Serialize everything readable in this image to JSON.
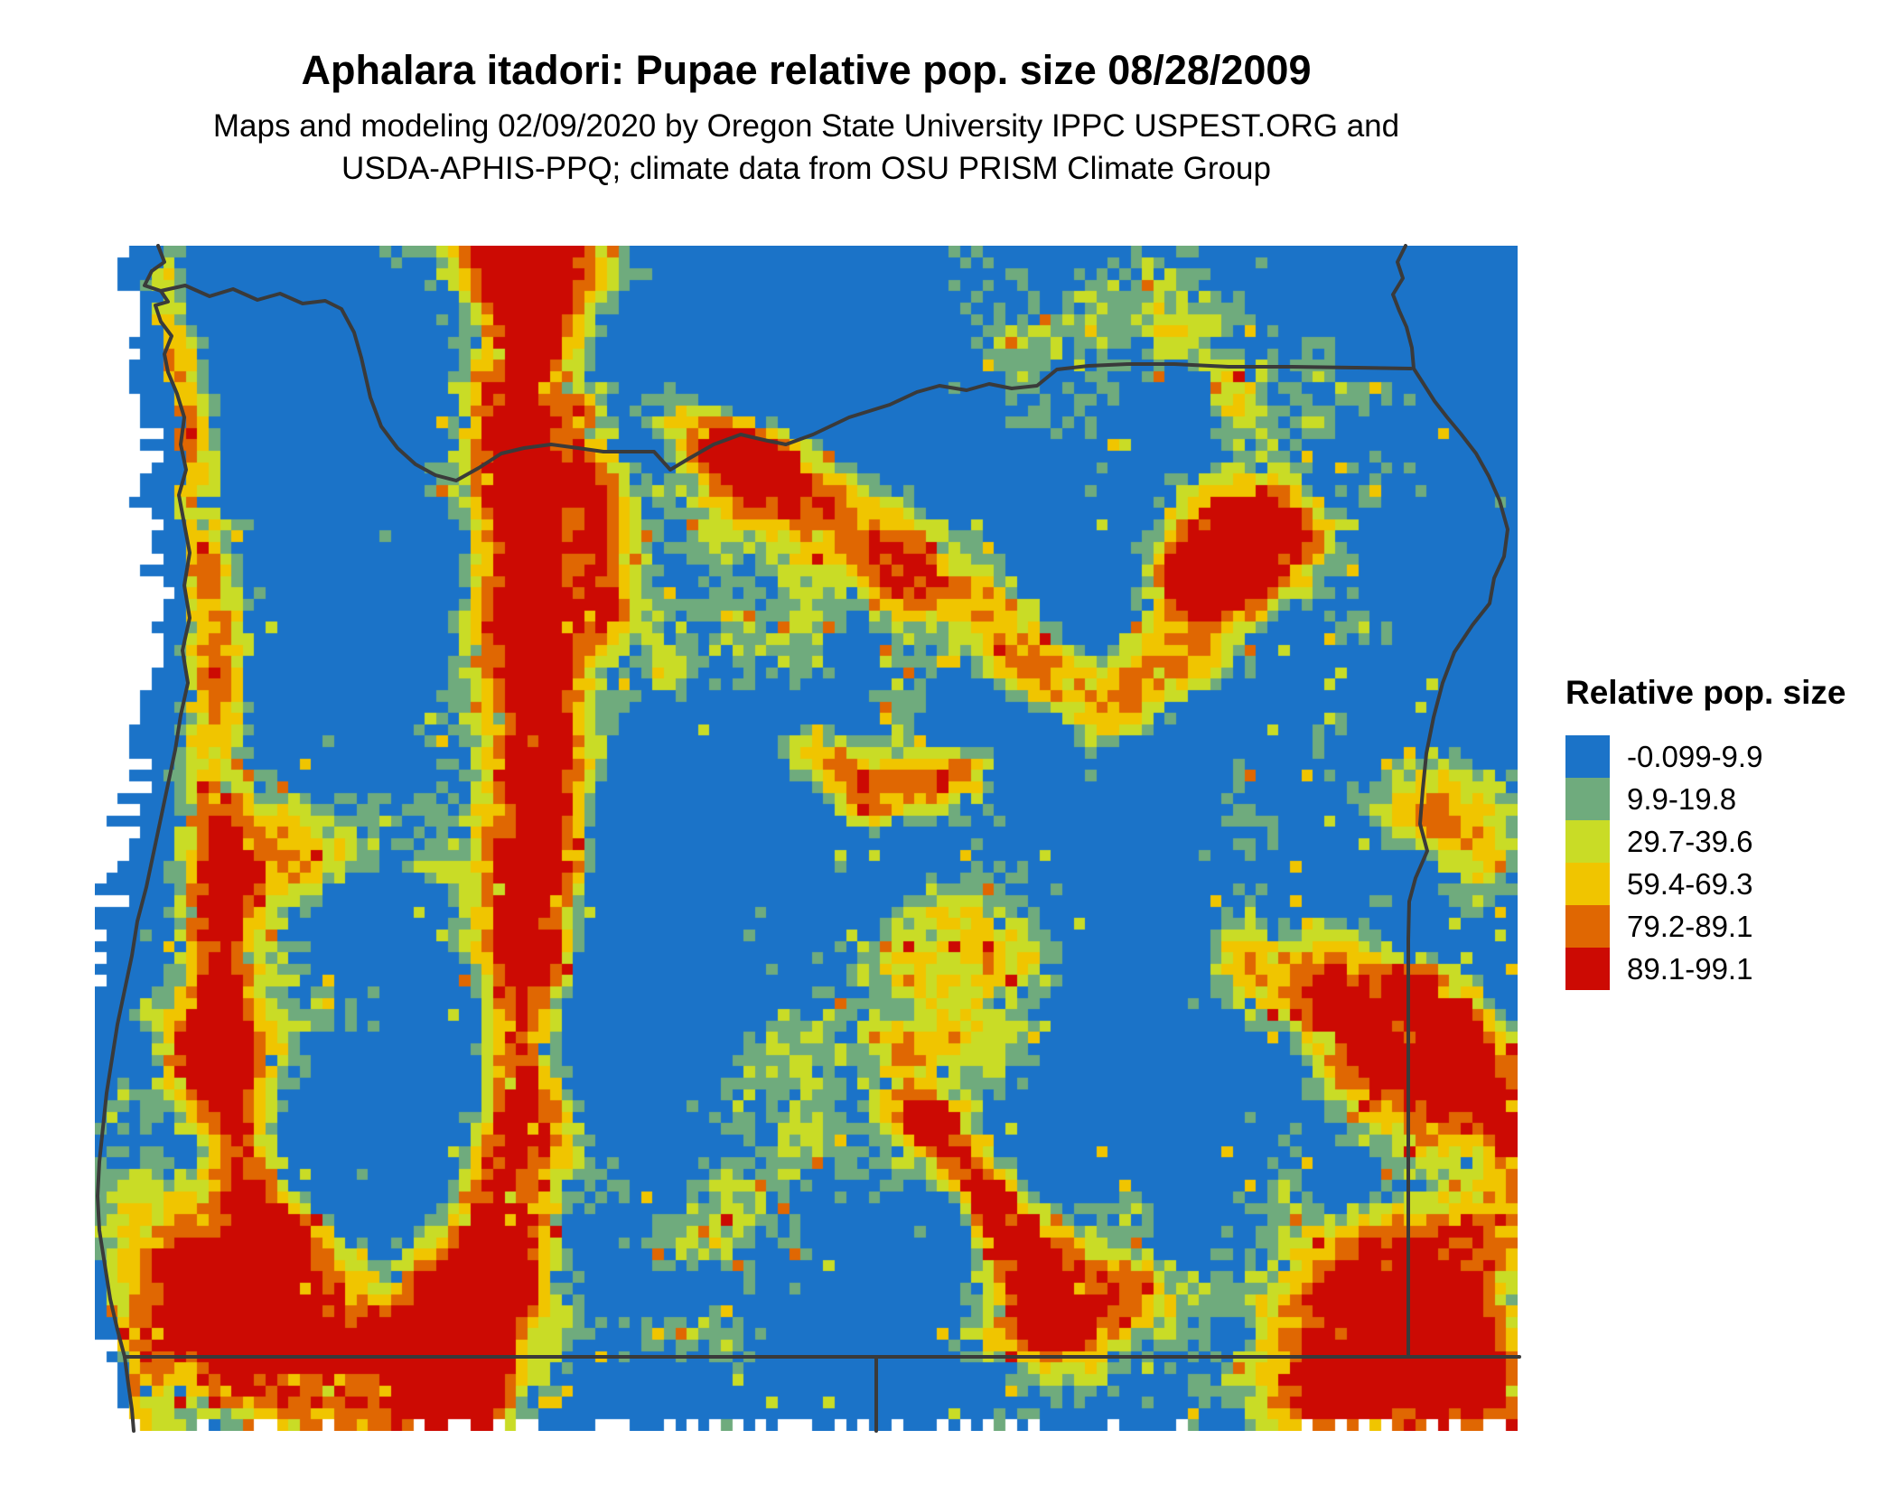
{
  "header": {
    "title": "Aphalara itadori: Pupae relative pop. size 08/28/2009",
    "subtitle_line1": "Maps and modeling 02/09/2020 by Oregon State University IPPC USPEST.ORG and",
    "subtitle_line2": "USDA-APHIS-PPQ; climate data from OSU PRISM Climate Group"
  },
  "legend": {
    "title": "Relative pop. size",
    "classes": [
      {
        "label": "-0.099-9.9",
        "color": "#1B73C8"
      },
      {
        "label": "9.9-19.8",
        "color": "#6FAB7D"
      },
      {
        "label": "29.7-39.6",
        "color": "#C9DC26"
      },
      {
        "label": "59.4-69.3",
        "color": "#F0C500"
      },
      {
        "label": "79.2-89.1",
        "color": "#E06702"
      },
      {
        "label": "89.1-99.1",
        "color": "#CC0A03"
      }
    ]
  },
  "map": {
    "background": "#FFFFFF",
    "boundary_color": "#3A3A3A",
    "boundaries": {
      "coastline": [
        [
          175,
          272
        ],
        [
          182,
          290
        ],
        [
          168,
          300
        ],
        [
          160,
          316
        ],
        [
          178,
          322
        ],
        [
          186,
          334
        ],
        [
          172,
          338
        ],
        [
          178,
          356
        ],
        [
          190,
          372
        ],
        [
          182,
          392
        ],
        [
          186,
          412
        ],
        [
          196,
          436
        ],
        [
          204,
          462
        ],
        [
          200,
          492
        ],
        [
          206,
          520
        ],
        [
          198,
          548
        ],
        [
          204,
          580
        ],
        [
          210,
          612
        ],
        [
          204,
          648
        ],
        [
          210,
          684
        ],
        [
          202,
          720
        ],
        [
          208,
          756
        ],
        [
          200,
          792
        ],
        [
          194,
          830
        ],
        [
          186,
          868
        ],
        [
          178,
          906
        ],
        [
          170,
          944
        ],
        [
          162,
          982
        ],
        [
          152,
          1020
        ],
        [
          146,
          1058
        ],
        [
          138,
          1096
        ],
        [
          130,
          1134
        ],
        [
          124,
          1172
        ],
        [
          118,
          1210
        ],
        [
          114,
          1248
        ],
        [
          110,
          1286
        ],
        [
          108,
          1324
        ],
        [
          110,
          1362
        ],
        [
          116,
          1400
        ],
        [
          122,
          1438
        ],
        [
          130,
          1472
        ],
        [
          138,
          1502
        ],
        [
          142,
          1532
        ],
        [
          146,
          1560
        ],
        [
          148,
          1584
        ]
      ],
      "columbia_washington_border": [
        [
          178,
          322
        ],
        [
          205,
          316
        ],
        [
          232,
          328
        ],
        [
          258,
          320
        ],
        [
          285,
          332
        ],
        [
          310,
          325
        ],
        [
          335,
          336
        ],
        [
          360,
          333
        ],
        [
          378,
          342
        ],
        [
          392,
          368
        ],
        [
          400,
          396
        ],
        [
          410,
          440
        ],
        [
          422,
          472
        ],
        [
          440,
          496
        ],
        [
          460,
          514
        ],
        [
          482,
          526
        ],
        [
          505,
          532
        ],
        [
          530,
          518
        ],
        [
          555,
          502
        ],
        [
          580,
          496
        ],
        [
          610,
          492
        ],
        [
          640,
          496
        ],
        [
          668,
          500
        ],
        [
          700,
          500
        ],
        [
          724,
          500
        ],
        [
          742,
          520
        ],
        [
          762,
          508
        ],
        [
          790,
          492
        ],
        [
          820,
          481
        ],
        [
          850,
          488
        ],
        [
          870,
          492
        ],
        [
          900,
          481
        ],
        [
          940,
          462
        ],
        [
          985,
          448
        ],
        [
          1015,
          434
        ],
        [
          1040,
          427
        ],
        [
          1070,
          432
        ],
        [
          1095,
          425
        ],
        [
          1120,
          430
        ],
        [
          1148,
          427
        ],
        [
          1170,
          409
        ],
        [
          1205,
          405
        ],
        [
          1250,
          403
        ],
        [
          1300,
          403
        ],
        [
          1360,
          406
        ],
        [
          1430,
          406
        ],
        [
          1500,
          407
        ],
        [
          1562,
          408
        ]
      ],
      "snake_idaho_border": [
        [
          1556,
          272
        ],
        [
          1547,
          290
        ],
        [
          1553,
          308
        ],
        [
          1542,
          326
        ],
        [
          1549,
          344
        ],
        [
          1557,
          362
        ],
        [
          1563,
          385
        ],
        [
          1565,
          408
        ],
        [
          1574,
          422
        ],
        [
          1588,
          444
        ],
        [
          1602,
          462
        ],
        [
          1617,
          480
        ],
        [
          1634,
          502
        ],
        [
          1648,
          527
        ],
        [
          1660,
          554
        ],
        [
          1669,
          586
        ],
        [
          1665,
          616
        ],
        [
          1654,
          640
        ],
        [
          1649,
          668
        ],
        [
          1630,
          692
        ],
        [
          1610,
          722
        ],
        [
          1597,
          756
        ],
        [
          1587,
          794
        ],
        [
          1579,
          834
        ],
        [
          1575,
          874
        ],
        [
          1572,
          912
        ],
        [
          1580,
          942
        ],
        [
          1567,
          972
        ],
        [
          1560,
          998
        ],
        [
          1559,
          1040
        ],
        [
          1559,
          1502
        ]
      ],
      "oregon_california_border_42n": [
        [
          138,
          1502
        ],
        [
          1682,
          1502
        ]
      ],
      "california_nevada_border_120w": [
        [
          970,
          1502
        ],
        [
          970,
          1584
        ]
      ]
    },
    "terrain": {
      "ridges": [
        {
          "pts": [
            [
              0.045,
              0.02
            ],
            [
              0.06,
              0.12
            ],
            [
              0.075,
              0.25
            ],
            [
              0.085,
              0.38
            ],
            [
              0.09,
              0.5
            ],
            [
              0.088,
              0.6
            ],
            [
              0.082,
              0.68
            ]
          ],
          "w": 0.026,
          "s": 0.4
        },
        {
          "pts": [
            [
              0.298,
              0.0
            ],
            [
              0.303,
              0.08
            ],
            [
              0.295,
              0.16
            ],
            [
              0.3,
              0.24
            ],
            [
              0.308,
              0.32
            ],
            [
              0.312,
              0.4
            ],
            [
              0.31,
              0.5
            ],
            [
              0.305,
              0.6
            ],
            [
              0.3,
              0.7
            ],
            [
              0.29,
              0.8
            ],
            [
              0.27,
              0.9
            ],
            [
              0.255,
              0.98
            ]
          ],
          "w": 0.038,
          "s": 0.62
        },
        {
          "pts": [
            [
              0.345,
              0.14
            ],
            [
              0.355,
              0.22
            ],
            [
              0.36,
              0.3
            ]
          ],
          "w": 0.022,
          "s": 0.3
        },
        {
          "pts": [
            [
              0.42,
              0.14
            ],
            [
              0.48,
              0.19
            ],
            [
              0.545,
              0.245
            ],
            [
              0.61,
              0.3
            ],
            [
              0.665,
              0.355
            ],
            [
              0.705,
              0.385
            ],
            [
              0.75,
              0.35
            ],
            [
              0.79,
              0.295
            ],
            [
              0.82,
              0.24
            ]
          ],
          "w": 0.04,
          "s": 0.5
        },
        {
          "pts": [
            [
              0.5,
              0.43
            ],
            [
              0.555,
              0.465
            ],
            [
              0.61,
              0.445
            ]
          ],
          "w": 0.026,
          "s": 0.4
        },
        {
          "pts": [
            [
              0.585,
              0.74
            ],
            [
              0.62,
              0.79
            ],
            [
              0.655,
              0.85
            ],
            [
              0.67,
              0.91
            ]
          ],
          "w": 0.022,
          "s": 0.52
        },
        {
          "pts": [
            [
              0.082,
              0.68
            ],
            [
              0.1,
              0.76
            ],
            [
              0.125,
              0.84
            ]
          ],
          "w": 0.032,
          "s": 0.42
        },
        {
          "pts": [
            [
              0.93,
              0.62
            ],
            [
              0.965,
              0.68
            ],
            [
              0.99,
              0.74
            ]
          ],
          "w": 0.022,
          "s": 0.35
        },
        {
          "pts": [
            [
              0.155,
              0.05
            ],
            [
              0.16,
              0.16
            ],
            [
              0.165,
              0.27
            ],
            [
              0.17,
              0.38
            ]
          ],
          "w": 0.033,
          "s": -0.38
        }
      ],
      "blobs": [
        {
          "c": [
            0.09,
            0.9
          ],
          "r": 0.1,
          "s": 0.5
        },
        {
          "c": [
            0.2,
            0.95
          ],
          "r": 0.085,
          "s": 0.45
        },
        {
          "c": [
            0.8,
            0.26
          ],
          "r": 0.05,
          "s": 0.62
        },
        {
          "c": [
            0.95,
            0.48
          ],
          "r": 0.055,
          "s": 0.42
        },
        {
          "c": [
            0.92,
            0.7
          ],
          "r": 0.075,
          "s": 0.55
        },
        {
          "c": [
            0.87,
            0.62
          ],
          "r": 0.05,
          "s": 0.32
        },
        {
          "c": [
            0.95,
            0.9
          ],
          "r": 0.1,
          "s": 0.58
        },
        {
          "c": [
            0.865,
            0.975
          ],
          "r": 0.07,
          "s": 0.45
        },
        {
          "c": [
            0.585,
            0.66
          ],
          "r": 0.1,
          "s": 0.38
        },
        {
          "c": [
            0.455,
            0.175
          ],
          "r": 0.035,
          "s": 0.5
        },
        {
          "c": [
            0.75,
            0.055
          ],
          "r": 0.05,
          "s": 0.32
        },
        {
          "c": [
            0.81,
            0.625
          ],
          "r": 0.05,
          "s": 0.4
        },
        {
          "c": [
            0.7,
            0.895
          ],
          "r": 0.055,
          "s": 0.42
        },
        {
          "c": [
            0.36,
            0.02
          ],
          "r": 0.05,
          "s": 0.45
        },
        {
          "c": [
            0.143,
            0.517
          ],
          "r": 0.065,
          "s": 0.36
        },
        {
          "c": [
            0.45,
            0.09
          ],
          "r": 0.085,
          "s": -0.42
        },
        {
          "c": [
            0.545,
            0.12
          ],
          "r": 0.065,
          "s": -0.33
        },
        {
          "c": [
            0.78,
            0.68
          ],
          "r": 0.095,
          "s": -0.38
        },
        {
          "c": [
            0.72,
            0.5
          ],
          "r": 0.06,
          "s": -0.28
        },
        {
          "c": [
            0.43,
            0.52
          ],
          "r": 0.08,
          "s": -0.3
        },
        {
          "c": [
            0.375,
            0.63
          ],
          "r": 0.075,
          "s": -0.28
        },
        {
          "c": [
            0.95,
            0.05
          ],
          "r": 0.08,
          "s": -0.35
        },
        {
          "c": [
            0.965,
            0.27
          ],
          "r": 0.055,
          "s": -0.3
        },
        {
          "c": [
            0.12,
            0.03
          ],
          "r": 0.07,
          "s": -0.3
        },
        {
          "c": [
            0.23,
            0.7
          ],
          "r": 0.06,
          "s": -0.3
        }
      ]
    }
  }
}
